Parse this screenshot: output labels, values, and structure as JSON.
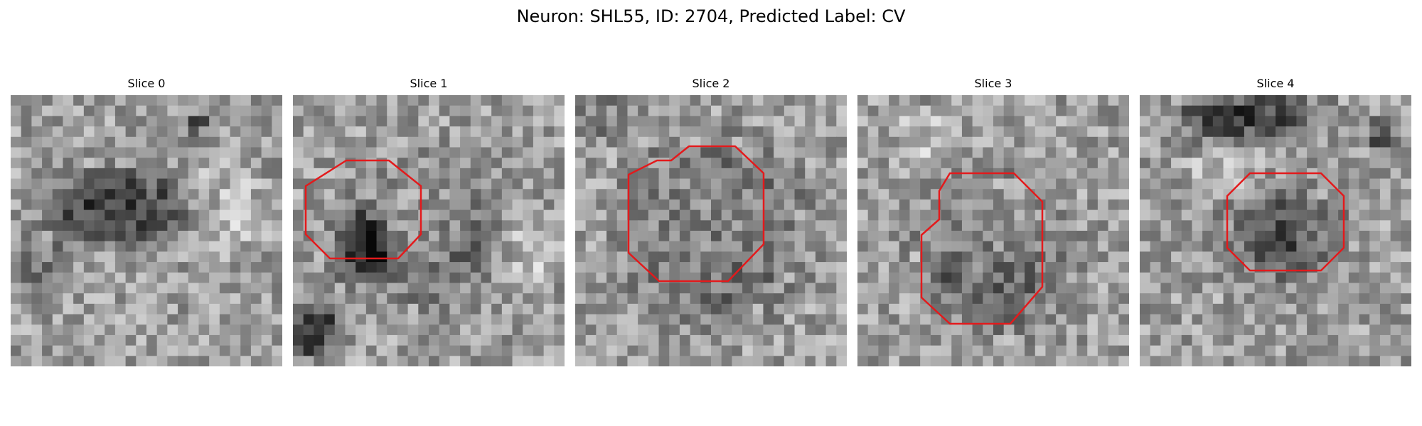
{
  "figure": {
    "title": "Neuron: SHL55, ID: 2704, Predicted Label: CV"
  },
  "panels": [
    {
      "title": "Slice 0",
      "has_contour": false
    },
    {
      "title": "Slice 1",
      "has_contour": true
    },
    {
      "title": "Slice 2",
      "has_contour": true
    },
    {
      "title": "Slice 3",
      "has_contour": true
    },
    {
      "title": "Slice 4",
      "has_contour": true
    }
  ],
  "colors": {
    "contour": "#e31a1c",
    "background": "#ffffff"
  },
  "colormap": "gray"
}
